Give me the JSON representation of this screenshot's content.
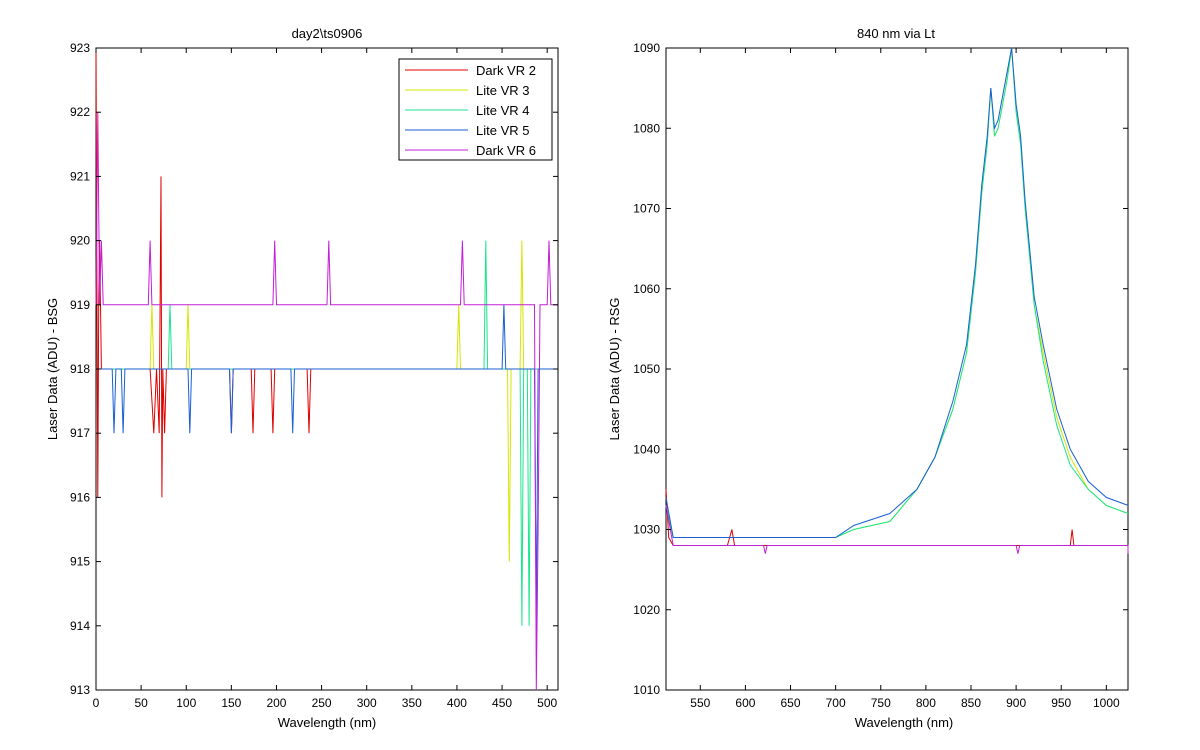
{
  "chart_data": [
    {
      "type": "line",
      "title": "day2\\ts0906",
      "xlabel": "Wavelength (nm)",
      "ylabel": "Laser Data (ADU) - BSG",
      "xlim": [
        0,
        512
      ],
      "ylim": [
        913,
        923
      ],
      "xticks": [
        0,
        50,
        100,
        150,
        200,
        250,
        300,
        350,
        400,
        450,
        500
      ],
      "yticks": [
        913,
        914,
        915,
        916,
        917,
        918,
        919,
        920,
        921,
        922,
        923
      ],
      "grid": false,
      "legend": "top-right",
      "baseline": 918,
      "series": [
        {
          "name": "Dark VR 2",
          "color": "#e00000",
          "values": [
            [
              0,
              923
            ],
            [
              2,
              916
            ],
            [
              3,
              919
            ],
            [
              4,
              920
            ],
            [
              6,
              918
            ],
            [
              60,
              918
            ],
            [
              64,
              917
            ],
            [
              67,
              918
            ],
            [
              70,
              917
            ],
            [
              72,
              921
            ],
            [
              73,
              916
            ],
            [
              74,
              918
            ],
            [
              76,
              917
            ],
            [
              78,
              918
            ],
            [
              148,
              918
            ],
            [
              150,
              917
            ],
            [
              152,
              918
            ],
            [
              172,
              918
            ],
            [
              174,
              917
            ],
            [
              176,
              918
            ],
            [
              194,
              918
            ],
            [
              196,
              917
            ],
            [
              198,
              918
            ],
            [
              234,
              918
            ],
            [
              236,
              917
            ],
            [
              238,
              918
            ],
            [
              512,
              918
            ]
          ]
        },
        {
          "name": "Lite VR 3",
          "color": "#d4e600",
          "values": [
            [
              0,
              918
            ],
            [
              60,
              918
            ],
            [
              62,
              919
            ],
            [
              64,
              918
            ],
            [
              100,
              918
            ],
            [
              102,
              919
            ],
            [
              104,
              918
            ],
            [
              400,
              918
            ],
            [
              402,
              919
            ],
            [
              404,
              918
            ],
            [
              456,
              918
            ],
            [
              458,
              915
            ],
            [
              460,
              918
            ],
            [
              470,
              918
            ],
            [
              472,
              920
            ],
            [
              474,
              918
            ],
            [
              512,
              918
            ]
          ]
        },
        {
          "name": "Lite VR 4",
          "color": "#19e68c",
          "values": [
            [
              0,
              918
            ],
            [
              80,
              918
            ],
            [
              82,
              919
            ],
            [
              84,
              918
            ],
            [
              430,
              918
            ],
            [
              432,
              920
            ],
            [
              434,
              918
            ],
            [
              470,
              918
            ],
            [
              472,
              914
            ],
            [
              474,
              918
            ],
            [
              478,
              918
            ],
            [
              480,
              914
            ],
            [
              482,
              918
            ],
            [
              512,
              918
            ]
          ]
        },
        {
          "name": "Lite VR 5",
          "color": "#1a5fd6",
          "values": [
            [
              0,
              918
            ],
            [
              18,
              918
            ],
            [
              20,
              917
            ],
            [
              22,
              918
            ],
            [
              28,
              918
            ],
            [
              30,
              917
            ],
            [
              32,
              918
            ],
            [
              102,
              918
            ],
            [
              104,
              917
            ],
            [
              106,
              918
            ],
            [
              148,
              918
            ],
            [
              150,
              917
            ],
            [
              152,
              918
            ],
            [
              216,
              918
            ],
            [
              218,
              917
            ],
            [
              220,
              918
            ],
            [
              450,
              918
            ],
            [
              452,
              919
            ],
            [
              454,
              918
            ],
            [
              486,
              918
            ],
            [
              488,
              914
            ],
            [
              490,
              918
            ],
            [
              512,
              918
            ]
          ]
        },
        {
          "name": "Dark VR 6",
          "color": "#c21fd6",
          "values": [
            [
              0,
              919
            ],
            [
              2,
              922
            ],
            [
              4,
              919
            ],
            [
              6,
              920
            ],
            [
              8,
              919
            ],
            [
              58,
              919
            ],
            [
              60,
              920
            ],
            [
              62,
              919
            ],
            [
              196,
              919
            ],
            [
              198,
              920
            ],
            [
              200,
              919
            ],
            [
              256,
              919
            ],
            [
              258,
              920
            ],
            [
              260,
              919
            ],
            [
              404,
              919
            ],
            [
              406,
              920
            ],
            [
              408,
              919
            ],
            [
              486,
              919
            ],
            [
              488,
              913
            ],
            [
              490,
              915.5
            ],
            [
              492,
              919
            ],
            [
              500,
              919
            ],
            [
              502,
              920
            ],
            [
              504,
              919
            ],
            [
              512,
              919
            ]
          ]
        }
      ]
    },
    {
      "type": "line",
      "title": "840 nm via Lt",
      "xlabel": "Wavelength (nm)",
      "ylabel": "Laser Data (ADU) - RSG",
      "xlim": [
        512,
        1024
      ],
      "ylim": [
        1010,
        1090
      ],
      "xticks": [
        550,
        600,
        650,
        700,
        750,
        800,
        850,
        900,
        950,
        1000
      ],
      "yticks": [
        1010,
        1020,
        1030,
        1040,
        1050,
        1060,
        1070,
        1080,
        1090
      ],
      "grid": false,
      "series": [
        {
          "color": "#e00000",
          "values": [
            [
              512,
              1035
            ],
            [
              515,
              1029
            ],
            [
              520,
              1028
            ],
            [
              560,
              1028
            ],
            [
              580,
              1028
            ],
            [
              585,
              1030
            ],
            [
              588,
              1028
            ],
            [
              700,
              1028
            ],
            [
              800,
              1028
            ],
            [
              900,
              1028
            ],
            [
              960,
              1028
            ],
            [
              962,
              1030
            ],
            [
              964,
              1028
            ],
            [
              1024,
              1028
            ]
          ]
        },
        {
          "color": "#d4e600",
          "values": [
            [
              512,
              1033
            ],
            [
              520,
              1029
            ],
            [
              600,
              1029
            ],
            [
              700,
              1029
            ],
            [
              720,
              1030
            ],
            [
              760,
              1031
            ],
            [
              790,
              1035
            ],
            [
              810,
              1039
            ],
            [
              830,
              1045
            ],
            [
              845,
              1052
            ],
            [
              855,
              1062
            ],
            [
              862,
              1072
            ],
            [
              868,
              1078
            ],
            [
              872,
              1085
            ],
            [
              876,
              1079
            ],
            [
              880,
              1080
            ],
            [
              885,
              1083
            ],
            [
              890,
              1086
            ],
            [
              895,
              1090
            ],
            [
              900,
              1083
            ],
            [
              905,
              1079
            ],
            [
              910,
              1070
            ],
            [
              920,
              1058
            ],
            [
              930,
              1052
            ],
            [
              945,
              1044
            ],
            [
              960,
              1039
            ],
            [
              980,
              1035
            ],
            [
              1000,
              1033
            ],
            [
              1024,
              1032
            ]
          ]
        },
        {
          "color": "#19e68c",
          "values": [
            [
              512,
              1033
            ],
            [
              520,
              1029
            ],
            [
              600,
              1029
            ],
            [
              700,
              1029
            ],
            [
              720,
              1030
            ],
            [
              760,
              1031
            ],
            [
              790,
              1035
            ],
            [
              810,
              1039
            ],
            [
              830,
              1045
            ],
            [
              845,
              1052
            ],
            [
              855,
              1062
            ],
            [
              862,
              1072
            ],
            [
              868,
              1078
            ],
            [
              872,
              1085
            ],
            [
              876,
              1079
            ],
            [
              880,
              1080
            ],
            [
              885,
              1083
            ],
            [
              890,
              1086
            ],
            [
              895,
              1090
            ],
            [
              900,
              1082
            ],
            [
              905,
              1078
            ],
            [
              910,
              1070
            ],
            [
              920,
              1058
            ],
            [
              930,
              1051
            ],
            [
              945,
              1043
            ],
            [
              960,
              1038
            ],
            [
              980,
              1035
            ],
            [
              1000,
              1033
            ],
            [
              1024,
              1032
            ]
          ]
        },
        {
          "color": "#1a5fd6",
          "values": [
            [
              512,
              1034
            ],
            [
              520,
              1029
            ],
            [
              600,
              1029
            ],
            [
              700,
              1029
            ],
            [
              720,
              1030.5
            ],
            [
              760,
              1032
            ],
            [
              790,
              1035
            ],
            [
              810,
              1039
            ],
            [
              830,
              1046
            ],
            [
              845,
              1053
            ],
            [
              855,
              1063
            ],
            [
              862,
              1073
            ],
            [
              868,
              1079
            ],
            [
              872,
              1085
            ],
            [
              876,
              1080
            ],
            [
              880,
              1081
            ],
            [
              885,
              1084
            ],
            [
              890,
              1087
            ],
            [
              895,
              1090
            ],
            [
              900,
              1083
            ],
            [
              905,
              1079
            ],
            [
              910,
              1071
            ],
            [
              920,
              1059
            ],
            [
              930,
              1053
            ],
            [
              945,
              1045
            ],
            [
              960,
              1040
            ],
            [
              980,
              1036
            ],
            [
              1000,
              1034
            ],
            [
              1024,
              1033
            ]
          ]
        },
        {
          "color": "#c21fd6",
          "values": [
            [
              512,
              1033
            ],
            [
              520,
              1028
            ],
            [
              600,
              1028
            ],
            [
              620,
              1028
            ],
            [
              622,
              1027
            ],
            [
              624,
              1028
            ],
            [
              700,
              1028
            ],
            [
              800,
              1028
            ],
            [
              900,
              1028
            ],
            [
              902,
              1027
            ],
            [
              904,
              1028
            ],
            [
              1024,
              1028
            ],
            [
              1024,
              1027
            ]
          ]
        }
      ]
    }
  ]
}
